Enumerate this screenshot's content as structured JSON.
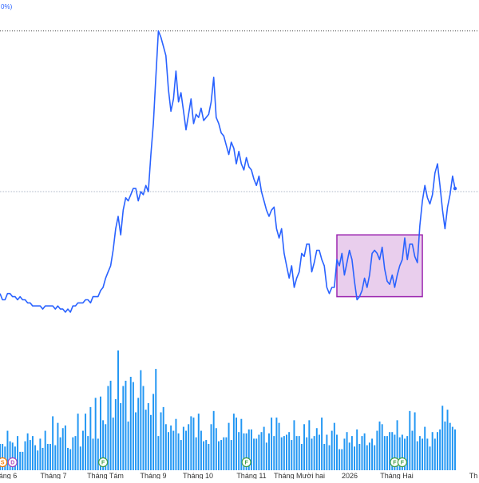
{
  "chart_data": {
    "type": "line",
    "title": "",
    "top_label": "0%)",
    "x_ticks": [
      "áng 6",
      "Tháng 7",
      "Tháng Tám",
      "Tháng 9",
      "Tháng 10",
      "Tháng 11",
      "Tháng Mười hai",
      "2026",
      "Tháng Hai",
      "Th"
    ],
    "price_series": {
      "color": "#2962ff",
      "values": [
        15,
        13,
        13,
        15,
        15,
        14,
        14,
        13,
        14,
        13,
        13,
        12,
        12,
        11,
        11,
        11,
        11,
        10,
        11,
        11,
        11,
        11,
        10,
        11,
        10,
        10,
        9,
        10,
        9,
        11,
        11,
        12,
        12,
        12,
        13,
        13,
        12,
        14,
        14,
        14,
        16,
        17,
        20,
        22,
        24,
        29,
        36,
        40,
        34,
        42,
        46,
        45,
        47,
        49,
        49,
        45,
        48,
        47,
        50,
        48,
        60,
        70,
        85,
        100,
        98,
        95,
        92,
        81,
        74,
        78,
        87,
        77,
        80,
        74,
        68,
        73,
        78,
        70,
        73,
        72,
        75,
        71,
        72,
        73,
        77,
        85,
        72,
        70,
        67,
        66,
        63,
        60,
        64,
        62,
        57,
        61,
        57,
        55,
        59,
        56,
        55,
        52,
        50,
        53,
        48,
        45,
        42,
        40,
        42,
        43,
        36,
        33,
        36,
        28,
        24,
        20,
        24,
        17,
        20,
        22,
        28,
        27,
        31,
        31,
        22,
        25,
        29,
        29,
        26,
        24,
        17,
        15,
        17,
        17,
        26,
        24,
        28,
        21,
        25,
        29,
        26,
        19,
        13,
        14,
        16,
        20,
        17,
        21,
        28,
        29,
        28,
        26,
        30,
        23,
        19,
        18,
        21,
        17,
        21,
        24,
        26,
        33,
        26,
        31,
        31,
        27,
        25,
        37,
        45,
        50,
        46,
        44,
        47,
        54,
        57,
        50,
        42,
        36,
        43,
        47,
        53,
        49
      ],
      "ylim": [
        -45,
        110
      ],
      "dotted_levels": [
        100,
        48
      ],
      "shaded_range": {
        "start_index": 134,
        "end_index": 168,
        "low": 14,
        "high": 34
      }
    },
    "volume_series": {
      "color": "#2196f3",
      "values": [
        20,
        20,
        18,
        30,
        22,
        21,
        18,
        26,
        14,
        14,
        22,
        28,
        23,
        26,
        19,
        15,
        24,
        17,
        30,
        20,
        20,
        41,
        19,
        36,
        25,
        32,
        34,
        17,
        16,
        25,
        26,
        43,
        18,
        30,
        43,
        26,
        48,
        24,
        55,
        24,
        56,
        38,
        35,
        64,
        68,
        40,
        54,
        91,
        51,
        64,
        68,
        37,
        71,
        67,
        44,
        55,
        76,
        64,
        46,
        51,
        42,
        58,
        77,
        26,
        44,
        48,
        35,
        29,
        34,
        30,
        39,
        28,
        23,
        33,
        30,
        35,
        41,
        40,
        25,
        43,
        30,
        22,
        23,
        20,
        35,
        45,
        32,
        22,
        23,
        25,
        25,
        36,
        23,
        43,
        40,
        29,
        39,
        28,
        28,
        31,
        31,
        24,
        24,
        27,
        29,
        33,
        21,
        28,
        40,
        26,
        40,
        36,
        25,
        26,
        27,
        29,
        23,
        38,
        26,
        26,
        20,
        35,
        25,
        38,
        24,
        26,
        32,
        27,
        40,
        20,
        27,
        19,
        30,
        36,
        27,
        16,
        16,
        24,
        29,
        21,
        26,
        18,
        31,
        20,
        26,
        28,
        19,
        21,
        24,
        19,
        30,
        37,
        35,
        26,
        26,
        29,
        29,
        27,
        38,
        25,
        27,
        24,
        26,
        45,
        30,
        44,
        22,
        26,
        24,
        33,
        24,
        18,
        29,
        24,
        29,
        31,
        49,
        37,
        46,
        36,
        33,
        31
      ]
    },
    "event_markers": [
      {
        "label": "S",
        "index": 1,
        "color": "#f57c00"
      },
      {
        "label": "D",
        "index": 5,
        "color": "#ab47bc"
      },
      {
        "label": "F",
        "index": 41,
        "color": "#43a047"
      },
      {
        "label": "F",
        "index": 98,
        "color": "#43a047"
      },
      {
        "label": "F",
        "index": 157,
        "color": "#43a047"
      },
      {
        "label": "F",
        "index": 160,
        "color": "#43a047"
      }
    ],
    "grid": false,
    "legend": "none"
  }
}
